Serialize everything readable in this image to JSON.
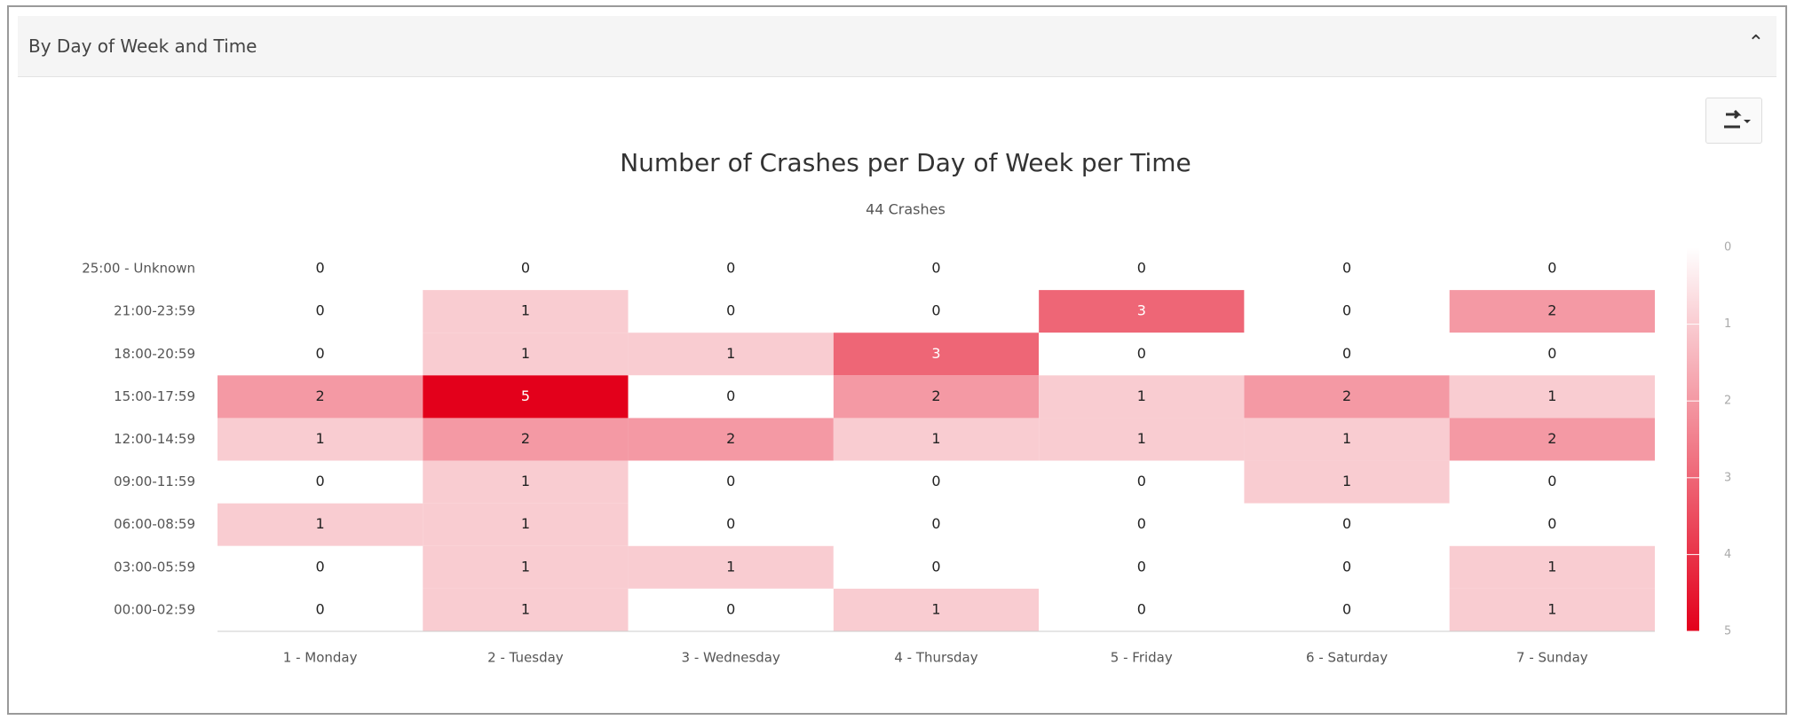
{
  "header": {
    "title": "By Day of Week and Time"
  },
  "chart_data": {
    "type": "heatmap",
    "title": "Number of Crashes per Day of Week per Time",
    "subtitle": "44 Crashes",
    "x_categories": [
      "1 - Monday",
      "2 - Tuesday",
      "3 - Wednesday",
      "4 - Thursday",
      "5 - Friday",
      "6 - Saturday",
      "7 - Sunday"
    ],
    "y_categories": [
      "25:00 - Unknown",
      "21:00-23:59",
      "18:00-20:59",
      "15:00-17:59",
      "12:00-14:59",
      "09:00-11:59",
      "06:00-08:59",
      "03:00-05:59",
      "00:00-02:59"
    ],
    "values": [
      [
        0,
        0,
        0,
        0,
        0,
        0,
        0
      ],
      [
        0,
        1,
        0,
        0,
        3,
        0,
        2
      ],
      [
        0,
        1,
        1,
        3,
        0,
        0,
        0
      ],
      [
        2,
        5,
        0,
        2,
        1,
        2,
        1
      ],
      [
        1,
        2,
        2,
        1,
        1,
        1,
        2
      ],
      [
        0,
        1,
        0,
        0,
        0,
        1,
        0
      ],
      [
        1,
        1,
        0,
        0,
        0,
        0,
        0
      ],
      [
        0,
        1,
        1,
        0,
        0,
        0,
        1
      ],
      [
        0,
        1,
        0,
        1,
        0,
        0,
        1
      ]
    ],
    "zlim": [
      0,
      5
    ],
    "zticks": [
      0,
      1,
      2,
      3,
      4,
      5
    ],
    "color_low": "#ffffff",
    "color_high": "#e3001b"
  }
}
